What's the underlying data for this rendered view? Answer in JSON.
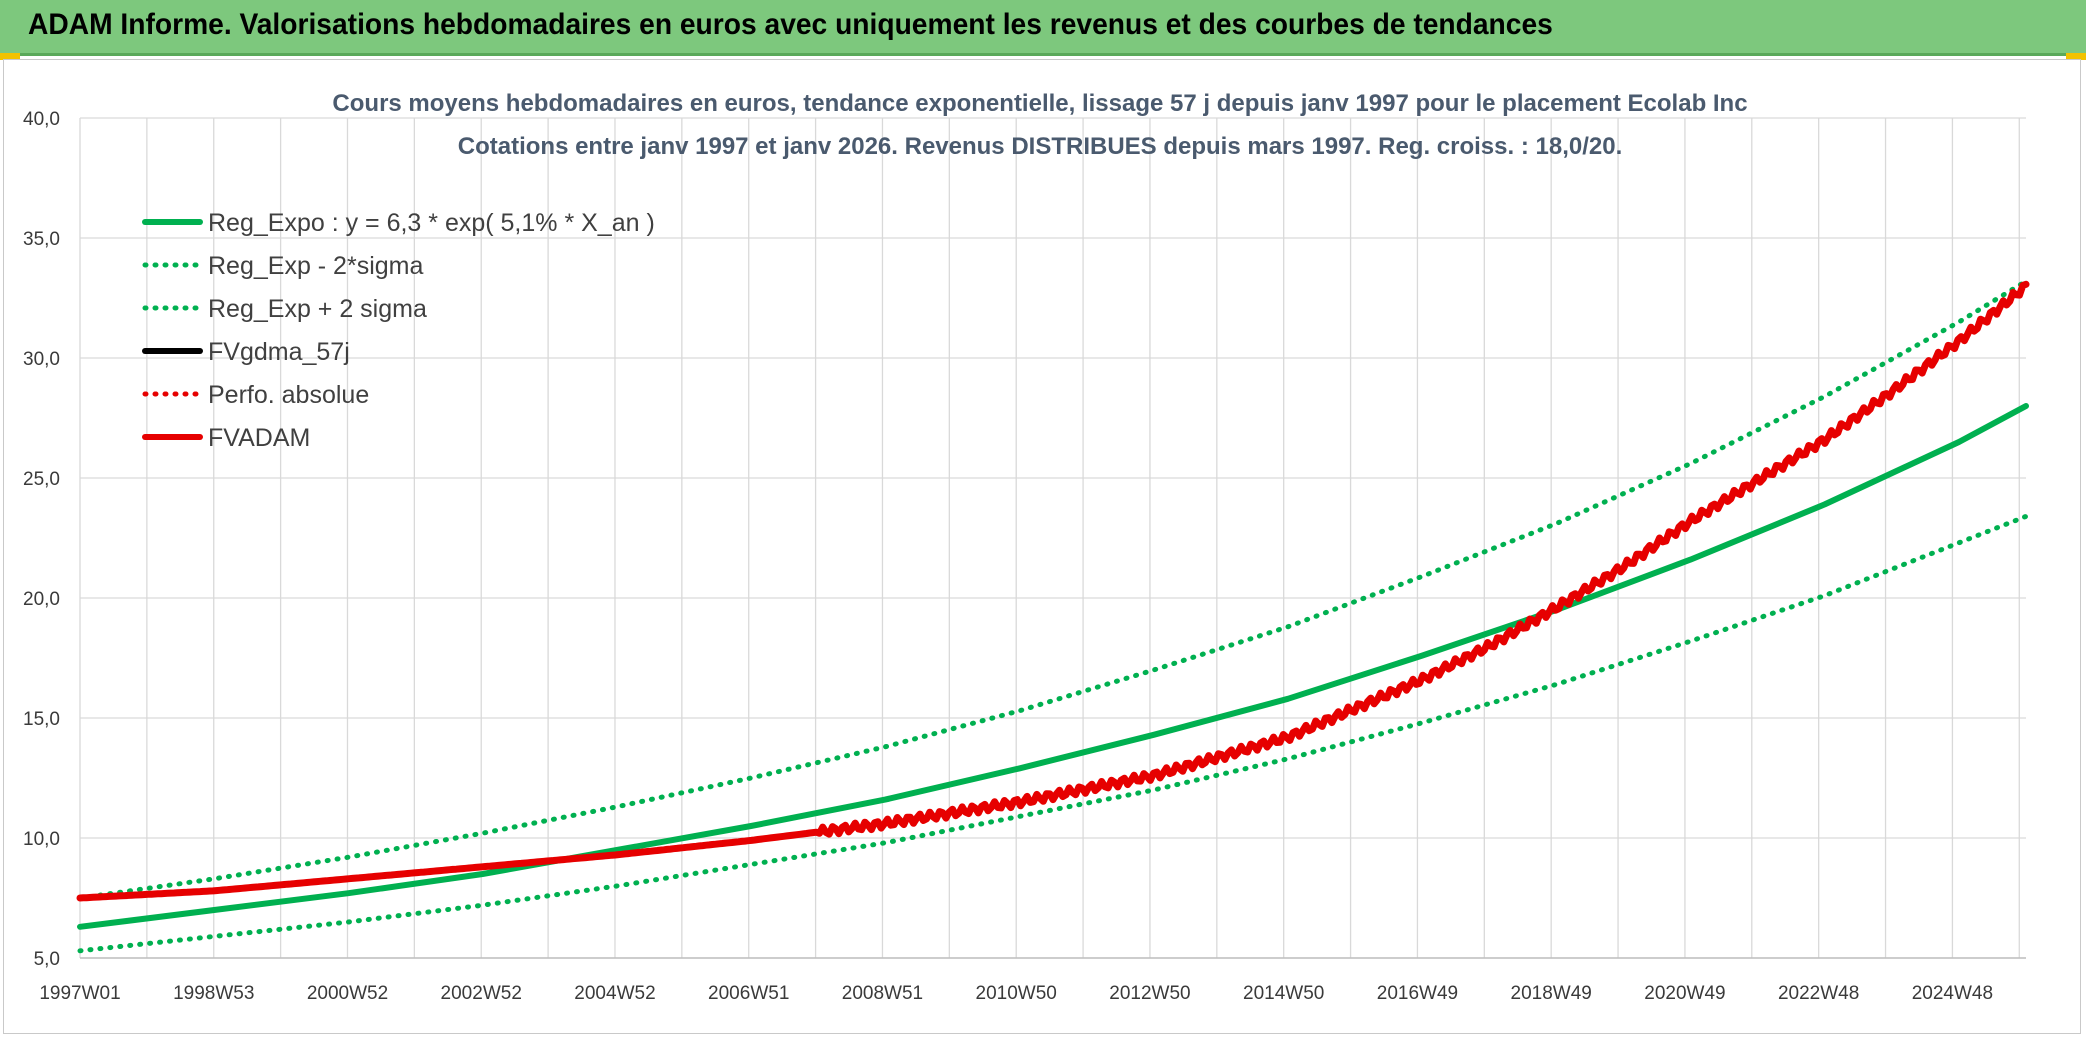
{
  "banner": {
    "title": "ADAM Informe. Valorisations hebdomadaires en euros avec uniquement les revenus et des courbes de tendances"
  },
  "colors": {
    "banner": "#7dc87d",
    "green": "#00b050",
    "red": "#e60000",
    "black": "#000000",
    "grid": "#d9d9d9"
  },
  "chart_data": {
    "type": "line",
    "title": "Cours moyens hebdomadaires en euros, tendance exponentielle, lissage 57 j depuis janv 1997 pour le placement Ecolab Inc",
    "subtitle": "Cotations entre janv 1997 et janv 2026. Revenus DISTRIBUES depuis mars 1997. Reg. croiss. : 18,0/20.",
    "xlabel": "",
    "ylabel": "",
    "ylim": [
      5,
      40
    ],
    "xlim": [
      1997.0,
      2026.0
    ],
    "y_ticks": [
      "5,0",
      "10,0",
      "15,0",
      "20,0",
      "25,0",
      "30,0",
      "35,0",
      "40,0"
    ],
    "x_tick_labels": [
      "1997W01",
      "1998W53",
      "2000W52",
      "2002W52",
      "2004W52",
      "2006W51",
      "2008W51",
      "2010W50",
      "2012W50",
      "2014W50",
      "2016W49",
      "2018W49",
      "2020W49",
      "2022W48",
      "2024W48"
    ],
    "grid": true,
    "legend_position": "top-left",
    "series": [
      {
        "name": "Reg_Expo : y = 6,3 * exp( 5,1% *  X_an )",
        "style": "solid",
        "color": "#00b050",
        "x": [
          1997,
          1999,
          2001,
          2003,
          2005,
          2007,
          2009,
          2011,
          2013,
          2015,
          2017,
          2019,
          2021,
          2023,
          2025,
          2026
        ],
        "y": [
          6.3,
          7.0,
          7.7,
          8.5,
          9.5,
          10.5,
          11.6,
          12.9,
          14.3,
          15.8,
          17.6,
          19.5,
          21.6,
          23.9,
          26.5,
          28.0
        ]
      },
      {
        "name": "Reg_Exp - 2*sigma",
        "style": "dotted",
        "color": "#00b050",
        "x": [
          1997,
          1999,
          2001,
          2003,
          2005,
          2007,
          2009,
          2011,
          2013,
          2015,
          2017,
          2019,
          2021,
          2023,
          2025,
          2026
        ],
        "y": [
          5.3,
          5.9,
          6.5,
          7.2,
          8.0,
          8.9,
          9.8,
          10.9,
          12.0,
          13.3,
          14.8,
          16.4,
          18.2,
          20.1,
          22.3,
          23.4
        ]
      },
      {
        "name": "Reg_Exp + 2 sigma",
        "style": "dotted",
        "color": "#00b050",
        "x": [
          1997,
          1999,
          2001,
          2003,
          2005,
          2007,
          2009,
          2011,
          2013,
          2015,
          2017,
          2019,
          2021,
          2023,
          2025,
          2026
        ],
        "y": [
          7.5,
          8.3,
          9.2,
          10.2,
          11.3,
          12.5,
          13.8,
          15.3,
          17.0,
          18.8,
          20.9,
          23.1,
          25.6,
          28.4,
          31.5,
          33.2
        ]
      },
      {
        "name": "FVgdma_57j",
        "style": "solid",
        "color": "#000000",
        "x": [],
        "y": []
      },
      {
        "name": "Perfo. absolue",
        "style": "dotted",
        "color": "#e60000",
        "x": [],
        "y": []
      },
      {
        "name": "FVADAM",
        "style": "solid",
        "color": "#e60000",
        "x": [
          1997,
          1999,
          2001,
          2003,
          2005,
          2007,
          2009,
          2011,
          2013,
          2015,
          2017,
          2018,
          2019,
          2020,
          2021,
          2022,
          2023,
          2024,
          2025,
          2026
        ],
        "y": [
          7.5,
          7.8,
          8.3,
          8.8,
          9.3,
          9.9,
          10.6,
          11.5,
          12.6,
          14.2,
          16.6,
          18.0,
          19.6,
          21.3,
          23.2,
          24.9,
          26.6,
          28.6,
          30.7,
          33.0
        ]
      }
    ]
  }
}
